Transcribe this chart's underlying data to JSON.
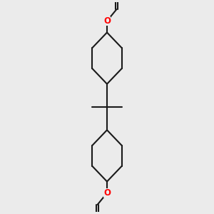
{
  "bg_color": "#ebebeb",
  "bond_color": "#1a1a1a",
  "oxygen_color": "#ff0000",
  "line_width": 1.5,
  "figsize": [
    3.0,
    3.0
  ],
  "dpi": 100,
  "xlim": [
    -0.8,
    0.8
  ],
  "ylim": [
    -1.55,
    1.55
  ]
}
